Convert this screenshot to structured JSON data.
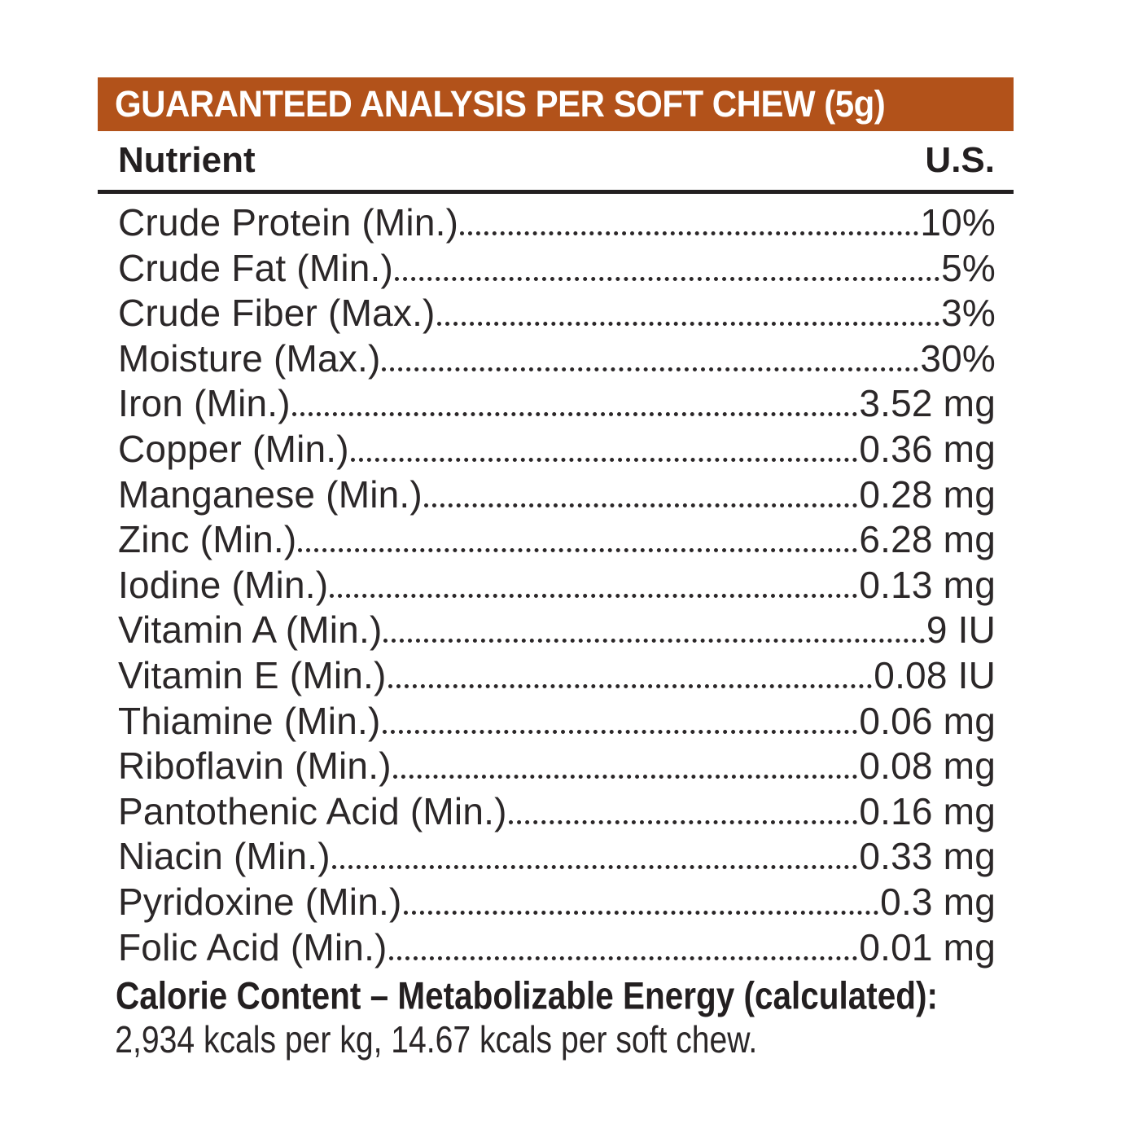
{
  "header": {
    "title": "GUARANTEED ANALYSIS PER SOFT CHEW (5g)",
    "band_color": "#B2521A",
    "text_color": "#FFFFFF"
  },
  "columns": {
    "nutrient": "Nutrient",
    "us": "U.S."
  },
  "nutrients": [
    {
      "label": "Crude Protein (Min.)",
      "value": "10%"
    },
    {
      "label": "Crude Fat (Min.)",
      "value": "5%"
    },
    {
      "label": "Crude Fiber (Max.)",
      "value": "3%"
    },
    {
      "label": "Moisture (Max.)",
      "value": "30%"
    },
    {
      "label": "Iron (Min.)",
      "value": "3.52 mg"
    },
    {
      "label": "Copper (Min.)",
      "value": "0.36 mg"
    },
    {
      "label": "Manganese (Min.)",
      "value": "0.28 mg"
    },
    {
      "label": "Zinc (Min.)",
      "value": "6.28 mg"
    },
    {
      "label": "Iodine (Min.)",
      "value": "0.13 mg"
    },
    {
      "label": "Vitamin A (Min.)",
      "value": "9 IU"
    },
    {
      "label": "Vitamin E (Min.)",
      "value": "0.08 IU"
    },
    {
      "label": "Thiamine (Min.)",
      "value": "0.06 mg"
    },
    {
      "label": "Riboflavin (Min.)",
      "value": "0.08 mg"
    },
    {
      "label": "Pantothenic Acid (Min.)",
      "value": "0.16 mg"
    },
    {
      "label": "Niacin (Min.)",
      "value": "0.33 mg"
    },
    {
      "label": "Pyridoxine (Min.)",
      "value": "0.3 mg"
    },
    {
      "label": "Folic Acid (Min.)",
      "value": "0.01 mg"
    }
  ],
  "footer": {
    "calorie_heading": "Calorie Content – Metabolizable Energy (calculated):",
    "calorie_detail": "2,934 kcals per kg, 14.67 kcals per soft chew."
  },
  "colors": {
    "text": "#231F20",
    "background": "#FFFFFF"
  }
}
